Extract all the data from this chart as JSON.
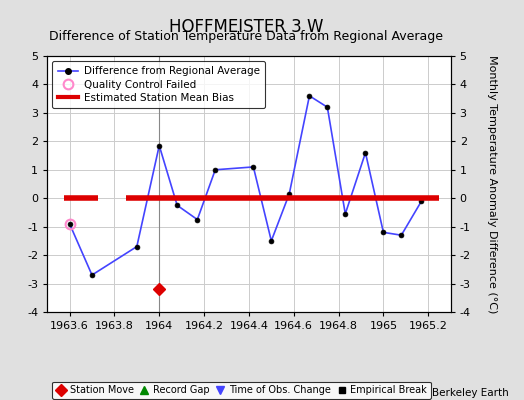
{
  "title": "HOFFMEISTER 3 W",
  "subtitle": "Difference of Station Temperature Data from Regional Average",
  "ylabel": "Monthly Temperature Anomaly Difference (°C)",
  "credit": "Berkeley Earth",
  "xlim": [
    1963.5,
    1965.3
  ],
  "ylim": [
    -4,
    5
  ],
  "yticks": [
    -4,
    -3,
    -2,
    -1,
    0,
    1,
    2,
    3,
    4,
    5
  ],
  "xticks": [
    1963.6,
    1963.8,
    1964,
    1964.2,
    1964.4,
    1964.6,
    1964.8,
    1965,
    1965.2
  ],
  "xtick_labels": [
    "1963.6",
    "1963.8",
    "1964",
    "1964.2",
    "1964.4",
    "1964.6",
    "1964.8",
    "1965",
    "1965.2"
  ],
  "line_x": [
    1963.6,
    1963.7,
    1963.9,
    1964.0,
    1964.08,
    1964.17,
    1964.25,
    1964.42,
    1964.5,
    1964.58,
    1964.67,
    1964.75,
    1964.83,
    1964.92,
    1965.0,
    1965.08,
    1965.17
  ],
  "line_y": [
    -0.9,
    -2.7,
    -1.7,
    1.85,
    -0.25,
    -0.75,
    1.0,
    1.1,
    -1.5,
    0.15,
    3.6,
    3.2,
    -0.55,
    1.6,
    -1.2,
    -1.3,
    -0.1
  ],
  "bias_y": 0.0,
  "bias_xstart": 1963.85,
  "bias_xend": 1965.25,
  "bias_short_x1": 1963.575,
  "bias_short_x2": 1963.725,
  "qc_failed_x": 1963.6,
  "qc_failed_y": -0.9,
  "station_move_x": 1964.0,
  "station_move_y": -3.2,
  "line_color": "#4444FF",
  "bias_color": "#DD0000",
  "bg_color": "#e0e0e0",
  "plot_bg": "#ffffff",
  "grid_color": "#cccccc",
  "title_fontsize": 12,
  "subtitle_fontsize": 9,
  "tick_fontsize": 8,
  "ylabel_fontsize": 8
}
